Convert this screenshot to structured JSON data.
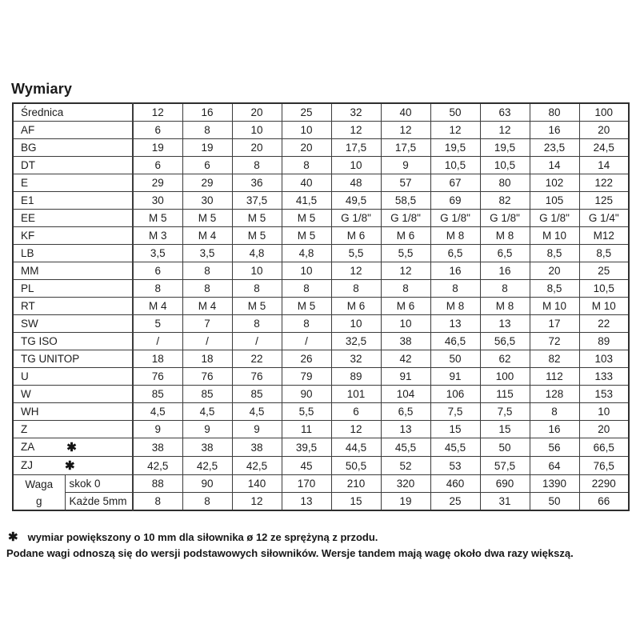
{
  "title": "Wymiary",
  "star_symbol": "✱",
  "table": {
    "header": {
      "label": "Średnica",
      "columns": [
        "12",
        "16",
        "20",
        "25",
        "32",
        "40",
        "50",
        "63",
        "80",
        "100"
      ]
    },
    "rows": [
      {
        "label": "AF",
        "star": false,
        "values": [
          "6",
          "8",
          "10",
          "10",
          "12",
          "12",
          "12",
          "12",
          "16",
          "20"
        ]
      },
      {
        "label": "BG",
        "star": false,
        "values": [
          "19",
          "19",
          "20",
          "20",
          "17,5",
          "17,5",
          "19,5",
          "19,5",
          "23,5",
          "24,5"
        ]
      },
      {
        "label": "DT",
        "star": false,
        "values": [
          "6",
          "6",
          "8",
          "8",
          "10",
          "9",
          "10,5",
          "10,5",
          "14",
          "14"
        ]
      },
      {
        "label": "E",
        "star": false,
        "values": [
          "29",
          "29",
          "36",
          "40",
          "48",
          "57",
          "67",
          "80",
          "102",
          "122"
        ]
      },
      {
        "label": "E1",
        "star": false,
        "values": [
          "30",
          "30",
          "37,5",
          "41,5",
          "49,5",
          "58,5",
          "69",
          "82",
          "105",
          "125"
        ]
      },
      {
        "label": "EE",
        "star": false,
        "values": [
          "M 5",
          "M 5",
          "M 5",
          "M 5",
          "G 1/8\"",
          "G 1/8\"",
          "G 1/8\"",
          "G 1/8\"",
          "G 1/8\"",
          "G 1/4\""
        ]
      },
      {
        "label": "KF",
        "star": false,
        "values": [
          "M 3",
          "M 4",
          "M 5",
          "M 5",
          "M 6",
          "M 6",
          "M 8",
          "M 8",
          "M 10",
          "M12"
        ]
      },
      {
        "label": "LB",
        "star": false,
        "values": [
          "3,5",
          "3,5",
          "4,8",
          "4,8",
          "5,5",
          "5,5",
          "6,5",
          "6,5",
          "8,5",
          "8,5"
        ]
      },
      {
        "label": "MM",
        "star": false,
        "values": [
          "6",
          "8",
          "10",
          "10",
          "12",
          "12",
          "16",
          "16",
          "20",
          "25"
        ]
      },
      {
        "label": "PL",
        "star": false,
        "values": [
          "8",
          "8",
          "8",
          "8",
          "8",
          "8",
          "8",
          "8",
          "8,5",
          "10,5"
        ]
      },
      {
        "label": "RT",
        "star": false,
        "values": [
          "M 4",
          "M 4",
          "M 5",
          "M 5",
          "M 6",
          "M 6",
          "M 8",
          "M 8",
          "M 10",
          "M 10"
        ]
      },
      {
        "label": "SW",
        "star": false,
        "values": [
          "5",
          "7",
          "8",
          "8",
          "10",
          "10",
          "13",
          "13",
          "17",
          "22"
        ]
      },
      {
        "label": "TG ISO",
        "star": false,
        "values": [
          "/",
          "/",
          "/",
          "/",
          "32,5",
          "38",
          "46,5",
          "56,5",
          "72",
          "89"
        ]
      },
      {
        "label": "TG UNITOP",
        "star": false,
        "values": [
          "18",
          "18",
          "22",
          "26",
          "32",
          "42",
          "50",
          "62",
          "82",
          "103"
        ]
      },
      {
        "label": "U",
        "star": false,
        "values": [
          "76",
          "76",
          "76",
          "79",
          "89",
          "91",
          "91",
          "100",
          "112",
          "133"
        ]
      },
      {
        "label": "W",
        "star": false,
        "values": [
          "85",
          "85",
          "85",
          "90",
          "101",
          "104",
          "106",
          "115",
          "128",
          "153"
        ]
      },
      {
        "label": "WH",
        "star": false,
        "values": [
          "4,5",
          "4,5",
          "4,5",
          "5,5",
          "6",
          "6,5",
          "7,5",
          "7,5",
          "8",
          "10"
        ]
      },
      {
        "label": "Z",
        "star": false,
        "values": [
          "9",
          "9",
          "9",
          "11",
          "12",
          "13",
          "15",
          "15",
          "16",
          "20"
        ]
      },
      {
        "label": "ZA",
        "star": true,
        "values": [
          "38",
          "38",
          "38",
          "39,5",
          "44,5",
          "45,5",
          "45,5",
          "50",
          "56",
          "66,5"
        ]
      },
      {
        "label": "ZJ",
        "star": true,
        "values": [
          "42,5",
          "42,5",
          "42,5",
          "45",
          "50,5",
          "52",
          "53",
          "57,5",
          "64",
          "76,5"
        ]
      }
    ],
    "weight": {
      "label_line1": "Waga",
      "label_line2": "g",
      "rows": [
        {
          "sublabel": "skok 0",
          "values": [
            "88",
            "90",
            "140",
            "170",
            "210",
            "320",
            "460",
            "690",
            "1390",
            "2290"
          ]
        },
        {
          "sublabel": "Każde 5mm",
          "values": [
            "8",
            "8",
            "12",
            "13",
            "15",
            "19",
            "25",
            "31",
            "50",
            "66"
          ]
        }
      ]
    }
  },
  "footnotes": {
    "line1": "wymiar powiększony o 10 mm dla siłownika ø 12 ze sprężyną z przodu.",
    "line2": "Podane wagi odnoszą się do wersji podstawowych siłowników. Wersje tandem mają wagę około dwa razy większą."
  }
}
